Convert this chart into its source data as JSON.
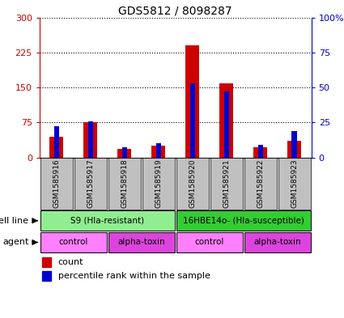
{
  "title": "GDS5812 / 8098287",
  "samples": [
    "GSM1585916",
    "GSM1585917",
    "GSM1585918",
    "GSM1585919",
    "GSM1585920",
    "GSM1585921",
    "GSM1585922",
    "GSM1585923"
  ],
  "counts": [
    45,
    75,
    18,
    25,
    240,
    158,
    22,
    35
  ],
  "percentiles": [
    22,
    26,
    7,
    10,
    53,
    47,
    9,
    19
  ],
  "left_ylim": [
    0,
    300
  ],
  "right_ylim": [
    0,
    100
  ],
  "left_yticks": [
    0,
    75,
    150,
    225,
    300
  ],
  "right_yticks": [
    0,
    25,
    50,
    75,
    100
  ],
  "left_ytick_labels": [
    "0",
    "75",
    "150",
    "225",
    "300"
  ],
  "right_ytick_labels": [
    "0",
    "25",
    "50",
    "75",
    "100%"
  ],
  "bar_color": "#cc0000",
  "percentile_color": "#0000cc",
  "left_axis_color": "#cc0000",
  "right_axis_color": "#0000cc",
  "cell_line_groups": [
    {
      "label": "S9 (Hla-resistant)",
      "start": 0,
      "end": 4,
      "color": "#90ee90"
    },
    {
      "label": "16HBE14o- (Hla-susceptible)",
      "start": 4,
      "end": 8,
      "color": "#33cc33"
    }
  ],
  "agent_groups": [
    {
      "label": "control",
      "start": 0,
      "end": 2,
      "color": "#ff80ff"
    },
    {
      "label": "alpha-toxin",
      "start": 2,
      "end": 4,
      "color": "#dd44dd"
    },
    {
      "label": "control",
      "start": 4,
      "end": 6,
      "color": "#ff80ff"
    },
    {
      "label": "alpha-toxin",
      "start": 6,
      "end": 8,
      "color": "#dd44dd"
    }
  ],
  "cell_line_label": "cell line",
  "agent_label": "agent",
  "legend_count_label": "count",
  "legend_percentile_label": "percentile rank within the sample",
  "bg_color": "#ffffff",
  "sample_bg_color": "#c0c0c0"
}
